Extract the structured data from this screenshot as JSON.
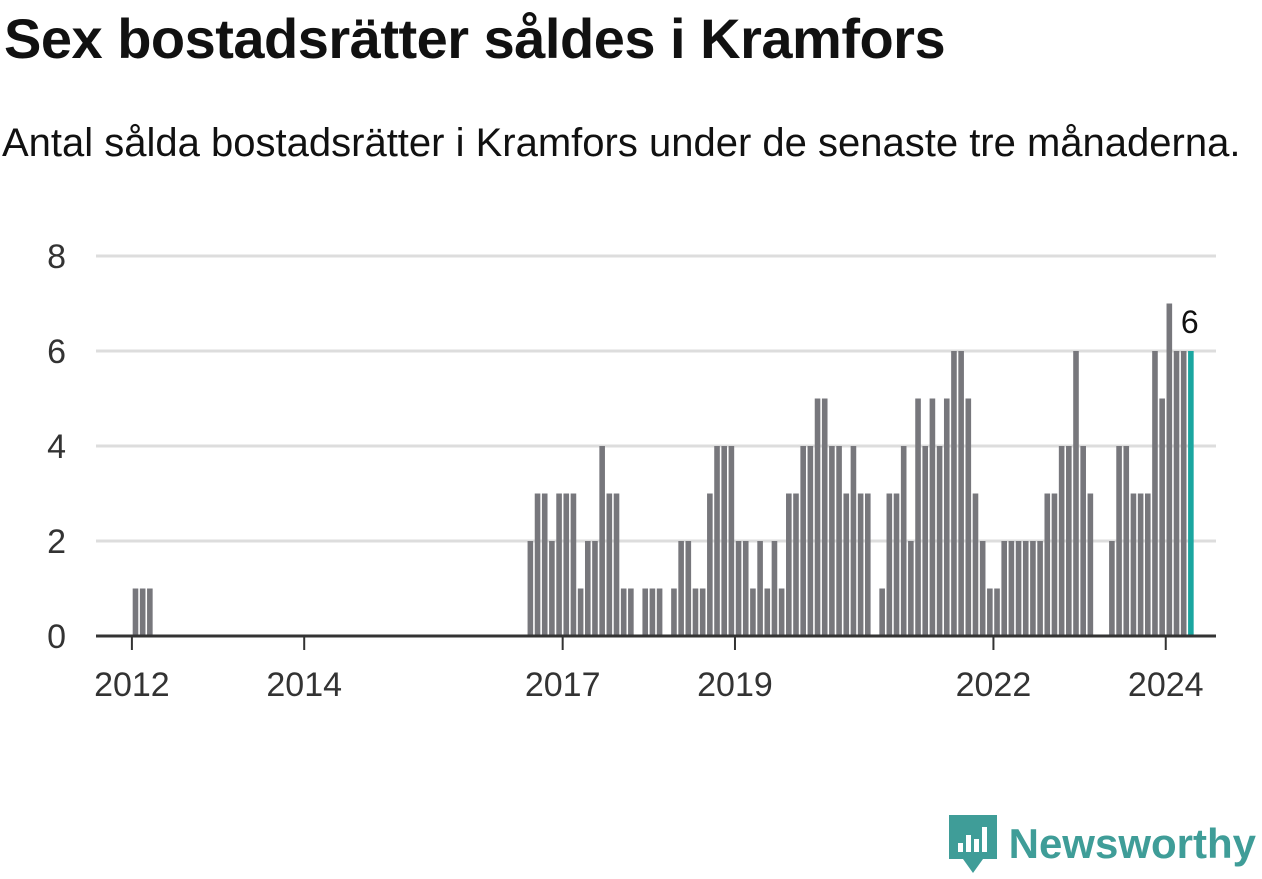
{
  "colors": {
    "bar": "#77777c",
    "highlight": "#1aa6a0",
    "grid": "#dddddd",
    "axis": "#333333",
    "brand": "#3f9d98"
  },
  "chart_data": {
    "type": "bar",
    "title": "Sex bostadsrätter såldes i Kramfors",
    "subtitle": "Antal sålda bostadsrätter i Kramfors under de senaste tre månaderna.",
    "ylim": [
      0,
      8
    ],
    "yticks": [
      0,
      2,
      4,
      6,
      8
    ],
    "xlim": [
      "2011-08",
      "2024-08"
    ],
    "xticks": [
      {
        "date": "2012-01",
        "label": "2012"
      },
      {
        "date": "2014-01",
        "label": "2014"
      },
      {
        "date": "2017-01",
        "label": "2017"
      },
      {
        "date": "2019-01",
        "label": "2019"
      },
      {
        "date": "2022-01",
        "label": "2022"
      },
      {
        "date": "2024-01",
        "label": "2024"
      }
    ],
    "grid": true,
    "series": [
      {
        "points": [
          [
            "2012-01",
            1
          ],
          [
            "2012-02",
            1
          ],
          [
            "2012-03",
            1
          ],
          [
            "2016-08",
            2
          ],
          [
            "2016-09",
            3
          ],
          [
            "2016-10",
            3
          ],
          [
            "2016-11",
            2
          ],
          [
            "2016-12",
            3
          ],
          [
            "2017-01",
            3
          ],
          [
            "2017-02",
            3
          ],
          [
            "2017-03",
            1
          ],
          [
            "2017-04",
            2
          ],
          [
            "2017-05",
            2
          ],
          [
            "2017-06",
            4
          ],
          [
            "2017-07",
            3
          ],
          [
            "2017-08",
            3
          ],
          [
            "2017-09",
            1
          ],
          [
            "2017-10",
            1
          ],
          [
            "2017-12",
            1
          ],
          [
            "2018-01",
            1
          ],
          [
            "2018-02",
            1
          ],
          [
            "2018-04",
            1
          ],
          [
            "2018-05",
            2
          ],
          [
            "2018-06",
            2
          ],
          [
            "2018-07",
            1
          ],
          [
            "2018-08",
            1
          ],
          [
            "2018-09",
            3
          ],
          [
            "2018-10",
            4
          ],
          [
            "2018-11",
            4
          ],
          [
            "2018-12",
            4
          ],
          [
            "2019-01",
            2
          ],
          [
            "2019-02",
            2
          ],
          [
            "2019-03",
            1
          ],
          [
            "2019-04",
            2
          ],
          [
            "2019-05",
            1
          ],
          [
            "2019-06",
            2
          ],
          [
            "2019-07",
            1
          ],
          [
            "2019-08",
            3
          ],
          [
            "2019-09",
            3
          ],
          [
            "2019-10",
            4
          ],
          [
            "2019-11",
            4
          ],
          [
            "2019-12",
            5
          ],
          [
            "2020-01",
            5
          ],
          [
            "2020-02",
            4
          ],
          [
            "2020-03",
            4
          ],
          [
            "2020-04",
            3
          ],
          [
            "2020-05",
            4
          ],
          [
            "2020-06",
            3
          ],
          [
            "2020-07",
            3
          ],
          [
            "2020-09",
            1
          ],
          [
            "2020-10",
            3
          ],
          [
            "2020-11",
            3
          ],
          [
            "2020-12",
            4
          ],
          [
            "2021-01",
            2
          ],
          [
            "2021-02",
            5
          ],
          [
            "2021-03",
            4
          ],
          [
            "2021-04",
            5
          ],
          [
            "2021-05",
            4
          ],
          [
            "2021-06",
            5
          ],
          [
            "2021-07",
            6
          ],
          [
            "2021-08",
            6
          ],
          [
            "2021-09",
            5
          ],
          [
            "2021-10",
            3
          ],
          [
            "2021-11",
            2
          ],
          [
            "2021-12",
            1
          ],
          [
            "2022-01",
            1
          ],
          [
            "2022-02",
            2
          ],
          [
            "2022-03",
            2
          ],
          [
            "2022-04",
            2
          ],
          [
            "2022-05",
            2
          ],
          [
            "2022-06",
            2
          ],
          [
            "2022-07",
            2
          ],
          [
            "2022-08",
            3
          ],
          [
            "2022-09",
            3
          ],
          [
            "2022-10",
            4
          ],
          [
            "2022-11",
            4
          ],
          [
            "2022-12",
            6
          ],
          [
            "2023-01",
            4
          ],
          [
            "2023-02",
            3
          ],
          [
            "2023-05",
            2
          ],
          [
            "2023-06",
            4
          ],
          [
            "2023-07",
            4
          ],
          [
            "2023-08",
            3
          ],
          [
            "2023-09",
            3
          ],
          [
            "2023-10",
            3
          ],
          [
            "2023-11",
            6
          ],
          [
            "2023-12",
            5
          ],
          [
            "2024-01",
            7
          ],
          [
            "2024-02",
            6
          ],
          [
            "2024-03",
            6
          ],
          [
            "2024-04",
            6
          ]
        ]
      }
    ],
    "highlight": {
      "date": "2024-04",
      "value": 6,
      "label": "6"
    }
  },
  "brand": {
    "name": "Newsworthy",
    "logo_icon": "bar-chart-badge-icon"
  }
}
